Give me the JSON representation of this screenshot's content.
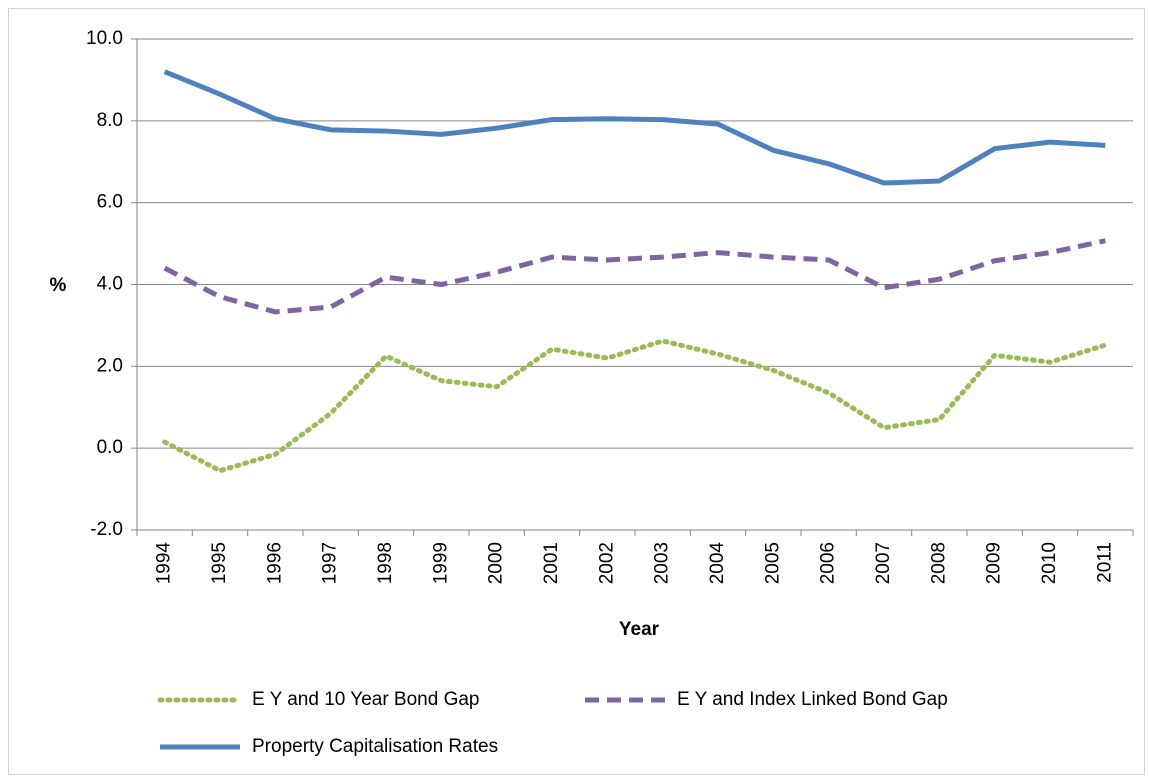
{
  "chart_data": {
    "type": "line",
    "y_label": "%",
    "x_label": "Year",
    "categories": [
      "1994",
      "1995",
      "1996",
      "1997",
      "1998",
      "1999",
      "2000",
      "2001",
      "2002",
      "2003",
      "2004",
      "2005",
      "2006",
      "2007",
      "2008",
      "2009",
      "2010",
      "2011"
    ],
    "series": [
      {
        "name": "E Y and 10 Year Bond Gap",
        "color": "#9bbb59",
        "dash": "dotted",
        "values": [
          0.15,
          -0.55,
          -0.15,
          0.85,
          2.25,
          1.65,
          1.5,
          2.42,
          2.2,
          2.62,
          2.3,
          1.9,
          1.35,
          0.5,
          0.7,
          2.27,
          2.1,
          2.52
        ]
      },
      {
        "name": "E Y and Index Linked Bond Gap",
        "color": "#8064a2",
        "dash": "dashed",
        "values": [
          4.4,
          3.7,
          3.33,
          3.45,
          4.18,
          4.0,
          4.3,
          4.67,
          4.6,
          4.67,
          4.78,
          4.67,
          4.6,
          3.92,
          4.13,
          4.58,
          4.78,
          5.07
        ]
      },
      {
        "name": "Property Capitalisation Rates",
        "color": "#4f81bd",
        "dash": "solid",
        "values": [
          9.2,
          8.65,
          8.05,
          7.78,
          7.75,
          7.67,
          7.82,
          8.03,
          8.05,
          8.03,
          7.92,
          7.28,
          6.95,
          6.48,
          6.53,
          7.32,
          7.48,
          7.4
        ]
      }
    ],
    "ylim": [
      -2,
      10
    ],
    "yticks": [
      {
        "value": -2,
        "label": "-2.0"
      },
      {
        "value": 0,
        "label": "0.0"
      },
      {
        "value": 2,
        "label": "2.0"
      },
      {
        "value": 4,
        "label": "4.0"
      },
      {
        "value": 6,
        "label": "6.0"
      },
      {
        "value": 8,
        "label": "8.0"
      },
      {
        "value": 10,
        "label": "10.0"
      }
    ],
    "grid": true,
    "legend": "bottom"
  }
}
